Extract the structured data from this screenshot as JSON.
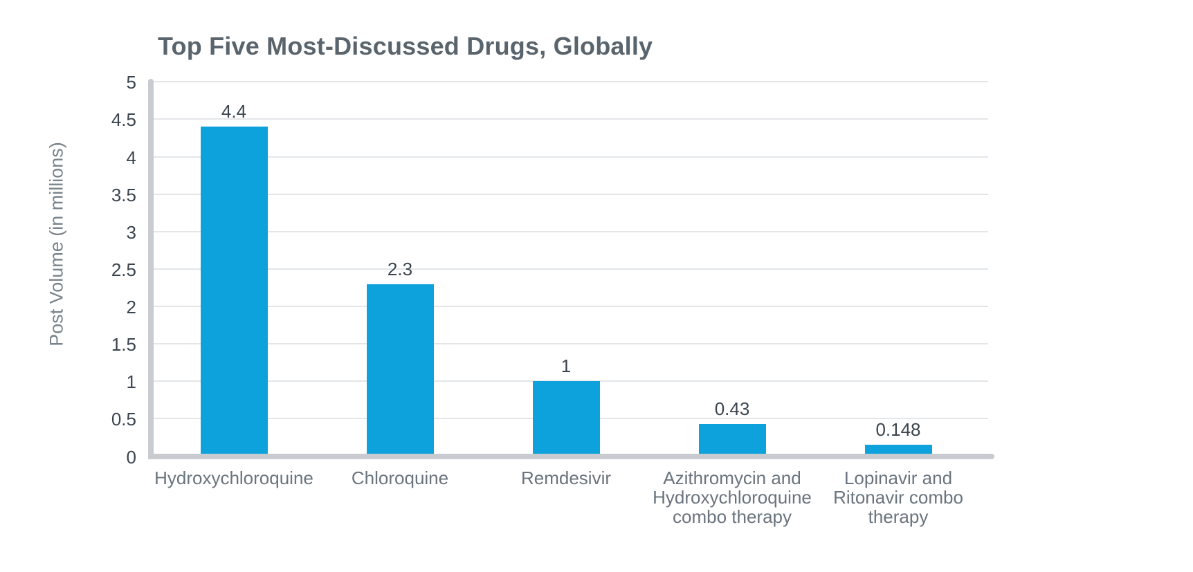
{
  "chart_data": {
    "type": "bar",
    "title": "Top Five Most-Discussed Drugs, Globally",
    "ylabel": "Post Volume (in millions)",
    "xlabel": "",
    "categories": [
      "Hydroxychloroquine",
      "Chloroquine",
      "Remdesivir",
      "Azithromycin and Hydroxychloroquine combo therapy",
      "Lopinavir and Ritonavir combo therapy"
    ],
    "category_lines": [
      [
        "Hydroxychloroquine"
      ],
      [
        "Chloroquine"
      ],
      [
        "Remdesivir"
      ],
      [
        "Azithromycin and",
        "Hydroxychloroquine",
        "combo therapy"
      ],
      [
        "Lopinavir and",
        "Ritonavir combo",
        "therapy"
      ]
    ],
    "values": [
      4.4,
      2.3,
      1,
      0.43,
      0.148
    ],
    "value_labels": [
      "4.4",
      "2.3",
      "1",
      "0.43",
      "0.148"
    ],
    "ylim": [
      0,
      5
    ],
    "ytick_step": 0.5,
    "ytick_labels": [
      "5",
      "4.5",
      "4",
      "3.5",
      "3",
      "2.5",
      "2",
      "1.5",
      "1",
      "0.5",
      "0"
    ],
    "grid": "horizontal",
    "legend": "none",
    "colors": {
      "bar": "#0EA2DC",
      "title_text": "#59646C",
      "tick_text": "#3A444E",
      "value_text": "#3A444E",
      "category_text": "#6A747E",
      "axis": "#C8CCD1",
      "gridline": "#E3E6E9",
      "background": "#FFFFFF"
    }
  }
}
